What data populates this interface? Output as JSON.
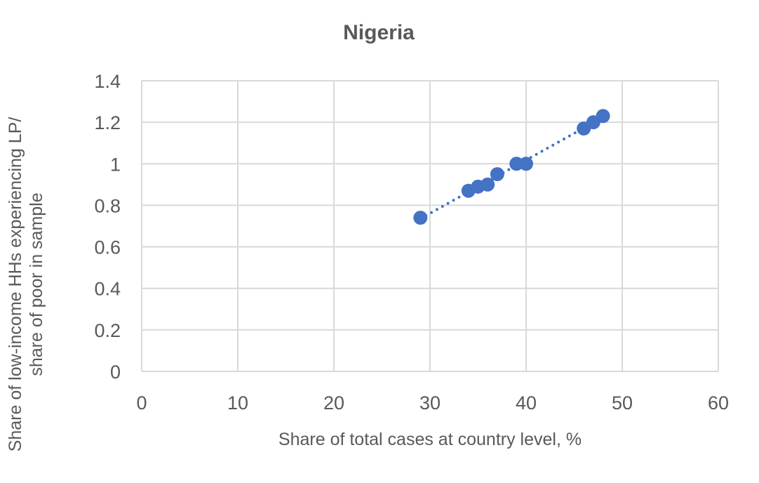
{
  "chart_data": {
    "type": "scatter",
    "title": "Nigeria",
    "xlabel": "Share of total cases at country level, %",
    "ylabel_lines": [
      "Share of low-income HHs experiencing LP/",
      "share of poor in sample"
    ],
    "xlim": [
      0,
      60
    ],
    "ylim": [
      0,
      1.4
    ],
    "x_ticks": [
      0,
      10,
      20,
      30,
      40,
      50,
      60
    ],
    "x_tick_labels": [
      "0",
      "10",
      "20",
      "30",
      "40",
      "50",
      "60"
    ],
    "y_ticks": [
      0,
      0.2,
      0.4,
      0.6,
      0.8,
      1.0,
      1.2,
      1.4
    ],
    "y_tick_labels": [
      "0",
      "0.2",
      "0.4",
      "0.6",
      "0.8",
      "1",
      "1.2",
      "1.4"
    ],
    "grid": true,
    "legend": "none",
    "series": [
      {
        "color": "#4472c4",
        "x": [
          29,
          34,
          35,
          36,
          37,
          39,
          40,
          46,
          47,
          48
        ],
        "y": [
          0.74,
          0.87,
          0.89,
          0.9,
          0.95,
          1.0,
          1.0,
          1.17,
          1.2,
          1.23
        ]
      }
    ],
    "trendline": {
      "kind": "linear",
      "style": "dotted",
      "color": "#4472c4",
      "x_range": [
        29,
        48
      ]
    }
  }
}
